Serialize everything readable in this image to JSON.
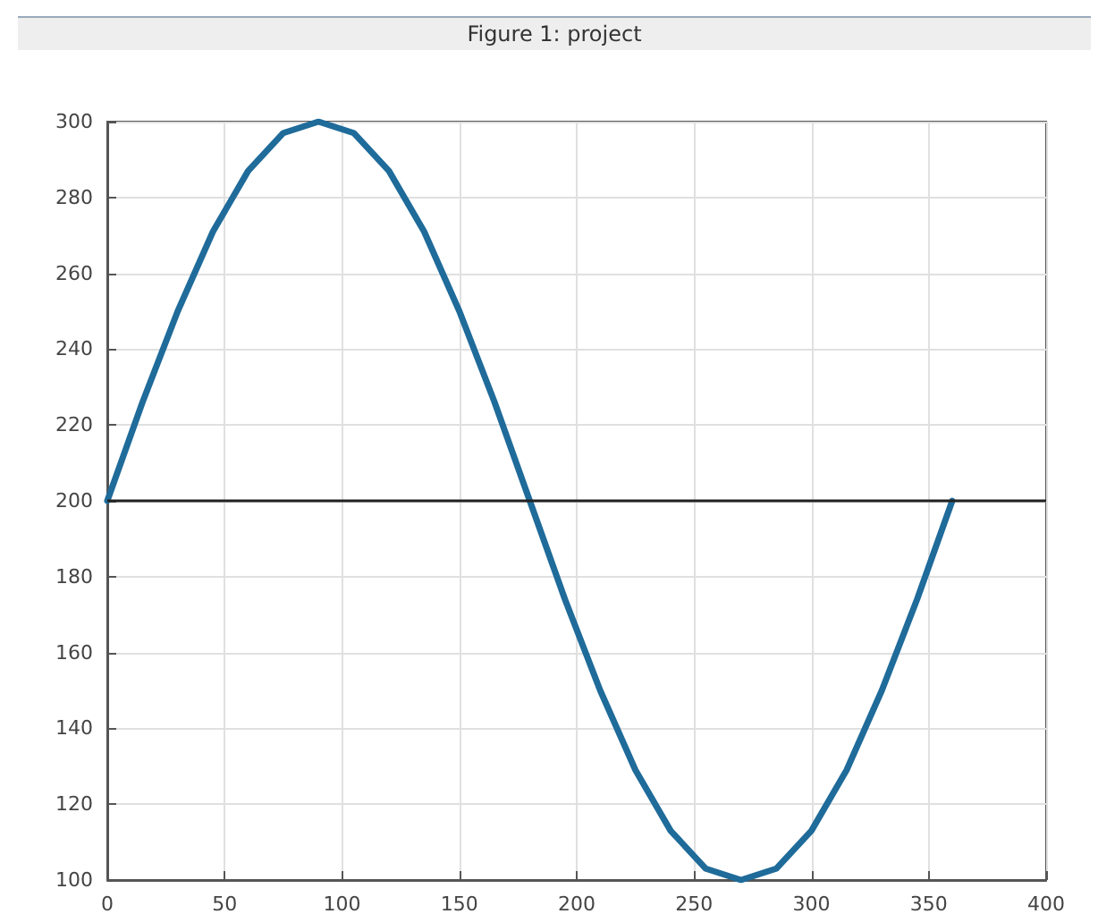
{
  "chart_data": {
    "type": "line",
    "title": "Figure 1: project",
    "x": [
      0,
      15,
      30,
      45,
      60,
      75,
      90,
      105,
      120,
      135,
      150,
      165,
      180,
      195,
      210,
      225,
      240,
      255,
      270,
      285,
      300,
      315,
      330,
      345,
      360
    ],
    "series": [
      {
        "color": "#1f6b9a",
        "values": [
          200,
          226,
          250,
          271,
          287,
          297,
          300,
          297,
          287,
          271,
          250,
          226,
          200,
          174,
          150,
          129,
          113,
          103,
          100,
          103,
          113,
          129,
          150,
          174,
          200
        ]
      }
    ],
    "xlim": [
      0,
      400
    ],
    "xticks": [
      0,
      50,
      100,
      150,
      200,
      250,
      300,
      350,
      400
    ],
    "ylim": [
      100,
      300
    ],
    "yticks": [
      100,
      120,
      140,
      160,
      180,
      200,
      220,
      240,
      260,
      280,
      300
    ],
    "ref_lines": [
      {
        "axis": "y",
        "value": 200,
        "color": "#222222"
      }
    ],
    "grid": true,
    "marker": "none",
    "line_style": "solid"
  }
}
